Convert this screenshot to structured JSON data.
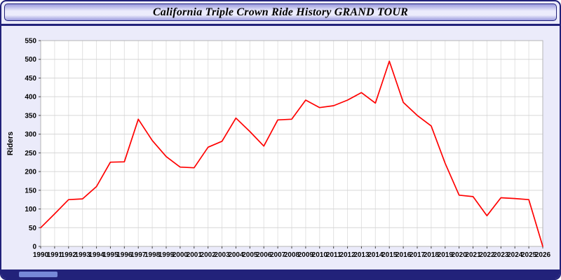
{
  "window": {
    "title": "California Triple Crown Ride History GRAND TOUR"
  },
  "chart_data": {
    "type": "line",
    "title": "California Triple Crown Ride History GRAND TOUR",
    "xlabel": "",
    "ylabel": "Riders",
    "ylim": [
      0,
      550
    ],
    "y_tick_step": 50,
    "grid": true,
    "legend_position": "none",
    "x": [
      1990,
      1991,
      1992,
      1993,
      1994,
      1995,
      1996,
      1997,
      1998,
      1999,
      2000,
      2001,
      2002,
      2003,
      2004,
      2005,
      2006,
      2007,
      2008,
      2009,
      2010,
      2011,
      2012,
      2013,
      2014,
      2015,
      2016,
      2017,
      2018,
      2019,
      2020,
      2021,
      2022,
      2023,
      2024,
      2025,
      2026
    ],
    "series": [
      {
        "name": "Riders",
        "color": "#ff0000",
        "values": [
          50,
          87,
          125,
          127,
          160,
          225,
          226,
          340,
          283,
          240,
          212,
          210,
          265,
          281,
          343,
          307,
          268,
          338,
          340,
          391,
          371,
          376,
          391,
          411,
          383,
          495,
          385,
          350,
          322,
          222,
          137,
          133,
          82,
          130,
          128,
          125,
          0
        ]
      }
    ],
    "colors": {
      "plot_background": "#ffffff",
      "page_background": "#ebebfa",
      "grid_horizontal": "#d6d6d6",
      "grid_vertical": "#e2e2e2",
      "plot_border": "#b5b5b5",
      "tick": "#444444",
      "text": "#000000",
      "chrome": "#22227a"
    }
  }
}
